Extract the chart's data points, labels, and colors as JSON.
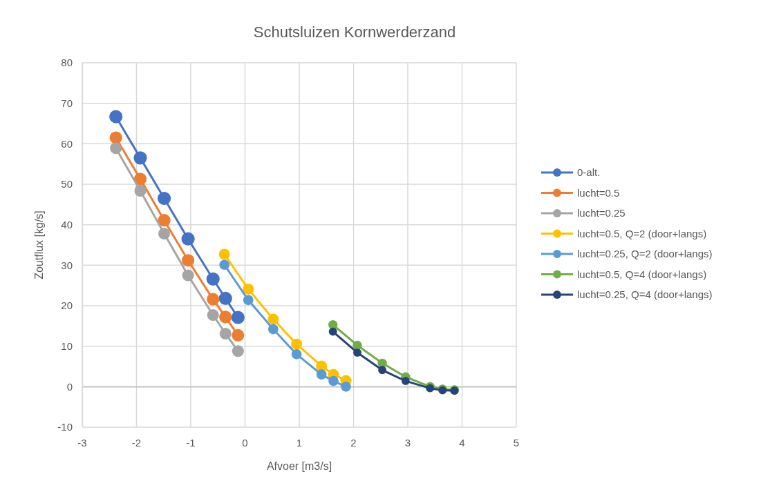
{
  "chart_data": {
    "type": "line",
    "title": "Schutsluizen Kornwerderzand",
    "xlabel": "Afvoer [m3/s]",
    "ylabel": "Zoutflux [kg/s]",
    "xlim": [
      -3,
      5
    ],
    "xticks": [
      -3,
      -2,
      -1,
      0,
      1,
      2,
      3,
      4,
      5
    ],
    "ylim": [
      -10,
      80
    ],
    "yticks": [
      -10,
      0,
      10,
      20,
      30,
      40,
      50,
      60,
      70,
      80
    ],
    "grid": true,
    "legend": "right",
    "marker": "circle",
    "line_style": "solid",
    "series": [
      {
        "name": "0-alt.",
        "color": "#4472c4",
        "x": [
          -2.38,
          -1.93,
          -1.49,
          -1.05,
          -0.59,
          -0.36,
          -0.13
        ],
        "values": [
          66.7,
          56.5,
          46.5,
          36.5,
          26.6,
          21.8,
          17.1
        ]
      },
      {
        "name": "lucht=0.5",
        "color": "#ed7d31",
        "x": [
          -2.38,
          -1.93,
          -1.49,
          -1.05,
          -0.59,
          -0.36,
          -0.13
        ],
        "values": [
          61.5,
          51.3,
          41.1,
          31.2,
          21.6,
          17.2,
          12.7
        ]
      },
      {
        "name": "lucht=0.25",
        "color": "#a5a5a5",
        "x": [
          -2.38,
          -1.93,
          -1.49,
          -1.05,
          -0.59,
          -0.36,
          -0.13
        ],
        "values": [
          58.9,
          48.4,
          37.8,
          27.5,
          17.7,
          13.1,
          8.8
        ]
      },
      {
        "name": "lucht=0.5, Q=2 (door+langs)",
        "color": "#ffc000",
        "x": [
          -0.38,
          0.06,
          0.52,
          0.95,
          1.41,
          1.63,
          1.86
        ],
        "values": [
          32.7,
          24.1,
          16.7,
          10.5,
          5.1,
          3.0,
          1.5
        ]
      },
      {
        "name": "lucht=0.25, Q=2 (door+langs)",
        "color": "#5b9bd5",
        "x": [
          -0.38,
          0.06,
          0.52,
          0.95,
          1.41,
          1.63,
          1.86
        ],
        "values": [
          30.1,
          21.4,
          14.2,
          8.0,
          3.0,
          1.4,
          0.0
        ]
      },
      {
        "name": "lucht=0.5, Q=4 (door+langs)",
        "color": "#70ad47",
        "x": [
          1.62,
          2.07,
          2.53,
          2.96,
          3.41,
          3.64,
          3.86
        ],
        "values": [
          15.3,
          10.2,
          5.8,
          2.4,
          0.0,
          -0.6,
          -0.8
        ]
      },
      {
        "name": "lucht=0.25, Q=4 (door+langs)",
        "color": "#264478",
        "x": [
          1.62,
          2.07,
          2.53,
          2.96,
          3.41,
          3.64,
          3.86
        ],
        "values": [
          13.6,
          8.4,
          4.1,
          1.4,
          -0.4,
          -0.9,
          -1.0
        ]
      }
    ]
  }
}
